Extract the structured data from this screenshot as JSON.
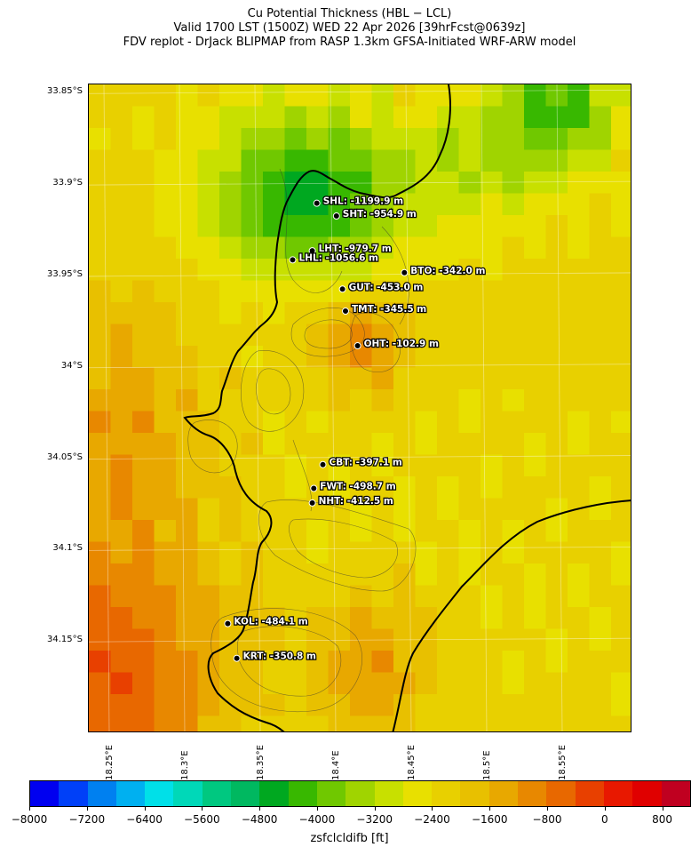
{
  "title": {
    "line1": "Cu Potential Thickness (HBL − LCL)",
    "line2": "Valid 1700 LST (1500Z) WED 22 Apr 2026 [39hrFcst@0639z]",
    "line3": "FDV replot - DrJack BLIPMAP from RASP 1.3km GFSA-Initiated WRF-ARW model"
  },
  "lat_labels": [
    "33.85°S",
    "33.9°S",
    "33.95°S",
    "34°S",
    "34.05°S",
    "34.1°S",
    "34.15°S"
  ],
  "lon_labels": [
    "18.25°E",
    "18.3°E",
    "18.35°E",
    "18.4°E",
    "18.45°E",
    "18.5°E",
    "18.55°E"
  ],
  "stations": [
    {
      "code": "SHL",
      "label": "SHL: -1199.9 m",
      "lon": 18.391,
      "lat": -33.91
    },
    {
      "code": "SHT",
      "label": "SHT: -954.9 m",
      "lon": 18.404,
      "lat": -33.917
    },
    {
      "code": "LHT",
      "label": "LHT: -979.7 m",
      "lon": 18.388,
      "lat": -33.936
    },
    {
      "code": "LHL",
      "label": "LHL: -1056.6 m",
      "lon": 18.375,
      "lat": -33.941
    },
    {
      "code": "BTO",
      "label": "BTO: -342.0 m",
      "lon": 18.449,
      "lat": -33.948
    },
    {
      "code": "GUT",
      "label": "GUT: -453.0 m",
      "lon": 18.408,
      "lat": -33.957
    },
    {
      "code": "TMT",
      "label": "TMT: -345.5 m",
      "lon": 18.41,
      "lat": -33.969
    },
    {
      "code": "OHT",
      "label": "OHT: -102.9 m",
      "lon": 18.418,
      "lat": -33.988
    },
    {
      "code": "CBT",
      "label": "CBT: -397.1 m",
      "lon": 18.395,
      "lat": -34.053
    },
    {
      "code": "FWT",
      "label": "FWT: -498.7 m",
      "lon": 18.389,
      "lat": -34.066
    },
    {
      "code": "NHT",
      "label": "NHT: -412.5 m",
      "lon": 18.388,
      "lat": -34.074
    },
    {
      "code": "KOL",
      "label": "KOL: -484.1 m",
      "lon": 18.332,
      "lat": -34.14
    },
    {
      "code": "KRT",
      "label": "KRT: -350.8 m",
      "lon": 18.338,
      "lat": -34.159
    }
  ],
  "colorbar": {
    "label": "zsfclcldifb [ft]",
    "min": -8000,
    "max": 1200,
    "ticks": [
      "−8000",
      "−7200",
      "−6400",
      "−5600",
      "−4800",
      "−4000",
      "−3200",
      "−2400",
      "−1600",
      "−800",
      "0",
      "800"
    ],
    "tick_values": [
      -8000,
      -7200,
      -6400,
      -5600,
      -4800,
      -4000,
      -3200,
      -2400,
      -1600,
      -800,
      0,
      800
    ],
    "colors": [
      "#0000f0",
      "#0040f8",
      "#0080f0",
      "#00b0f0",
      "#00e0e8",
      "#00d8b8",
      "#00c880",
      "#00b860",
      "#00a820",
      "#38b800",
      "#70c800",
      "#a0d400",
      "#c8e000",
      "#e8e000",
      "#e8d000",
      "#e8c000",
      "#e8a800",
      "#e88800",
      "#e86800",
      "#e84000",
      "#e81800",
      "#e00000",
      "#c00020"
    ]
  },
  "map": {
    "lon_range": [
      18.24,
      18.6
    ],
    "lat_range": [
      -34.2,
      -33.845
    ],
    "field_legend_value_range_ft": [
      -4800,
      400
    ]
  }
}
